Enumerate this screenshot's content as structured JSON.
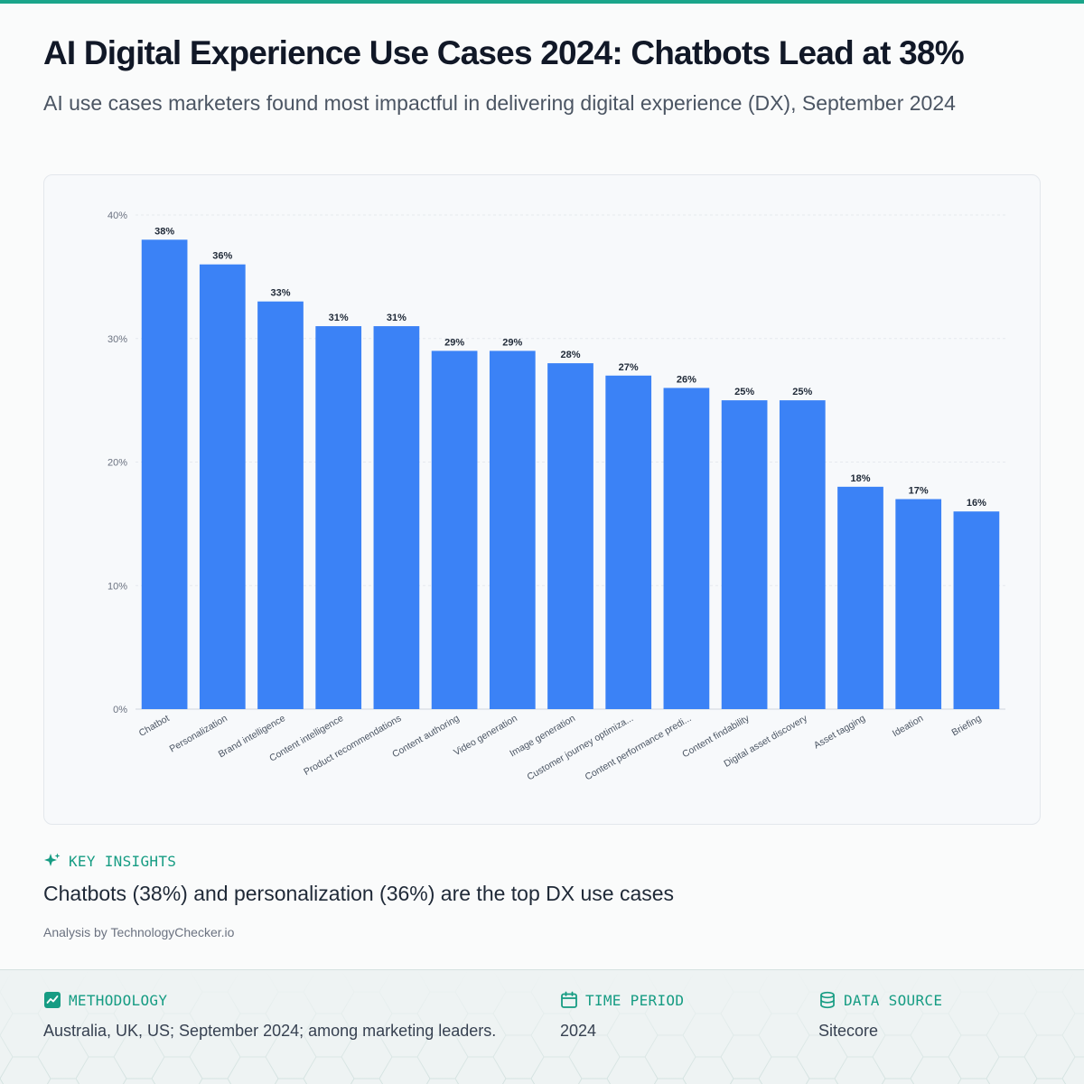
{
  "header": {
    "title": "AI Digital Experience Use Cases 2024: Chatbots Lead at 38%",
    "subtitle": "AI use cases marketers found most impactful in delivering digital experience (DX), September 2024"
  },
  "chart_data": {
    "type": "bar",
    "categories": [
      "Chatbot",
      "Personalization",
      "Brand intelligence",
      "Content intelligence",
      "Product recommendations",
      "Content authoring",
      "Video generation",
      "Image generation",
      "Customer journey optimiza...",
      "Content performance predi...",
      "Content findability",
      "Digital asset discovery",
      "Asset tagging",
      "Ideation",
      "Briefing"
    ],
    "values": [
      38,
      36,
      33,
      31,
      31,
      29,
      29,
      28,
      27,
      26,
      25,
      25,
      18,
      17,
      16
    ],
    "value_labels": [
      "38%",
      "36%",
      "33%",
      "31%",
      "31%",
      "29%",
      "29%",
      "28%",
      "27%",
      "26%",
      "25%",
      "25%",
      "18%",
      "17%",
      "16%"
    ],
    "y_ticks": [
      "0%",
      "10%",
      "20%",
      "30%",
      "40%"
    ],
    "ylim": [
      0,
      40
    ],
    "grid": true,
    "bar_color": "#3b82f6"
  },
  "insights": {
    "label": "KEY INSIGHTS",
    "text": "Chatbots (38%) and personalization (36%) are the top DX use cases",
    "credit": "Analysis by TechnologyChecker.io"
  },
  "footer": {
    "methodology": {
      "label": "METHODOLOGY",
      "value": "Australia, UK, US; September 2024; among marketing leaders.",
      "icon": "trend-chart-icon"
    },
    "time_period": {
      "label": "TIME PERIOD",
      "value": "2024",
      "icon": "calendar-icon"
    },
    "data_source": {
      "label": "DATA SOURCE",
      "value": "Sitecore",
      "icon": "database-icon"
    }
  },
  "colors": {
    "accent": "#1aa58a",
    "bar": "#3b82f6",
    "title": "#111827"
  }
}
